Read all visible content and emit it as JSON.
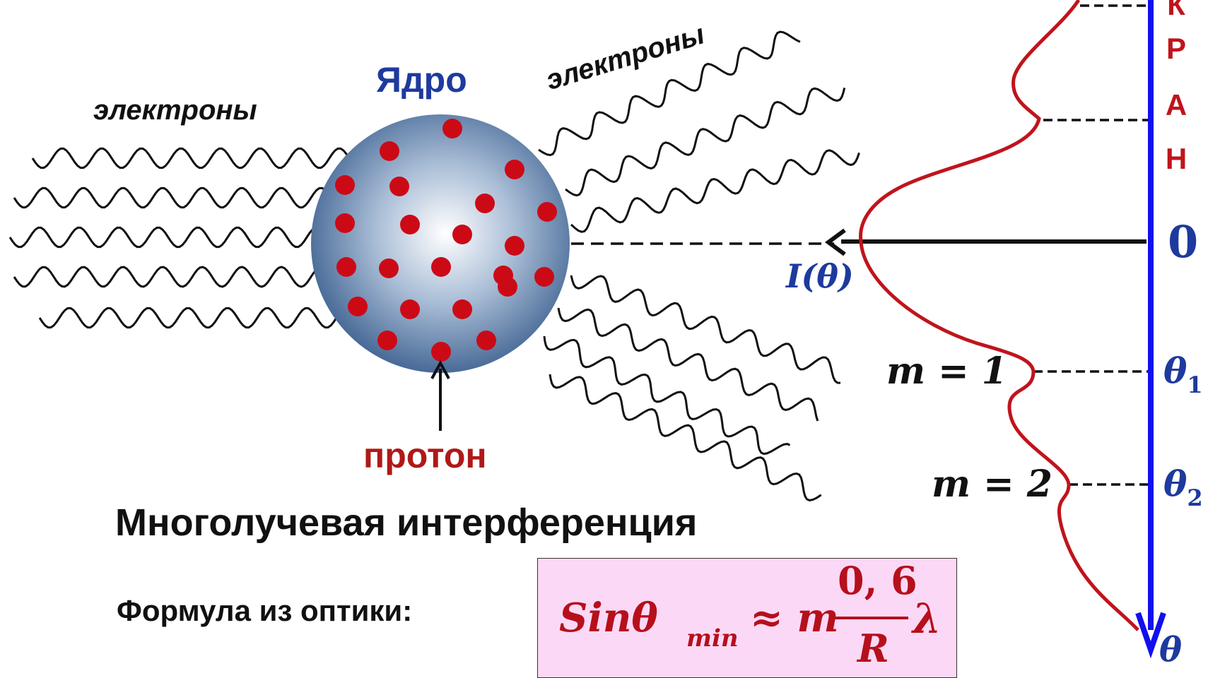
{
  "labels": {
    "electrons_left": "электроны",
    "electrons_right": "электроны",
    "nucleus": "Ядро",
    "proton": "протон",
    "title": "Многолучевая  интерференция",
    "formula_label": "Формула из оптики:"
  },
  "screen": {
    "letters": [
      "К",
      "Р",
      "А",
      "Н"
    ],
    "zero": "0",
    "axis_label": "θ",
    "theta1": "θ",
    "theta1_sub": "1",
    "theta2": "θ",
    "theta2_sub": "2",
    "m1": "m = 1",
    "m2": "m = 2",
    "intensity": "I(θ)"
  },
  "formula": {
    "sin": "Sinθ",
    "sub": "min",
    "approx": "≈ m",
    "numerator": "0, 6",
    "denominator": "R",
    "lambda": "λ"
  },
  "colors": {
    "axis": "#1010ee",
    "curve": "#c0141c",
    "proton_dot": "#cc0a16",
    "nucleus_edge": "#3a5f8e",
    "nucleus_center": "#ffffff",
    "formula_bg": "#fcd8f7",
    "dark_blue": "#1e3a9e"
  }
}
